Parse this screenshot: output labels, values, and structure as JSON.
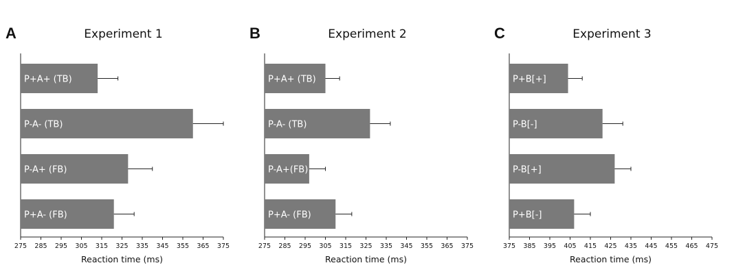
{
  "chart_data": [
    {
      "panel": "A",
      "type": "bar",
      "orientation": "horizontal",
      "title": "Experiment 1",
      "xlabel": "Reaction time (ms)",
      "xlim": [
        275,
        375
      ],
      "xticks": [
        275,
        285,
        295,
        305,
        315,
        325,
        335,
        345,
        355,
        365,
        375
      ],
      "categories": [
        "P+A+ (TB)",
        "P-A- (TB)",
        "P-A+ (FB)",
        "P+A- (FB)"
      ],
      "values": [
        313,
        360,
        328,
        321
      ],
      "errors": [
        10,
        15,
        12,
        10
      ],
      "bar_color": "#7a7a7a"
    },
    {
      "panel": "B",
      "type": "bar",
      "orientation": "horizontal",
      "title": "Experiment 2",
      "xlabel": "Reaction time (ms)",
      "xlim": [
        275,
        375
      ],
      "xticks": [
        275,
        285,
        295,
        305,
        315,
        325,
        335,
        345,
        355,
        365,
        375
      ],
      "categories": [
        "P+A+ (TB)",
        "P-A- (TB)",
        "P-A+(FB)",
        "P+A- (FB)"
      ],
      "values": [
        305,
        327,
        297,
        310
      ],
      "errors": [
        7,
        10,
        8,
        8
      ],
      "bar_color": "#7a7a7a"
    },
    {
      "panel": "C",
      "type": "bar",
      "orientation": "horizontal",
      "title": "Experiment 3",
      "xlabel": "Reaction time (ms)",
      "xlim": [
        375,
        475
      ],
      "xticks": [
        375,
        385,
        395,
        405,
        415,
        425,
        435,
        445,
        455,
        465,
        475
      ],
      "categories": [
        "P+B[+]",
        "P-B[-]",
        "P-B[+]",
        "P+B[-]"
      ],
      "values": [
        404,
        421,
        427,
        407
      ],
      "errors": [
        7,
        10,
        8,
        8
      ],
      "bar_color": "#7a7a7a"
    }
  ]
}
